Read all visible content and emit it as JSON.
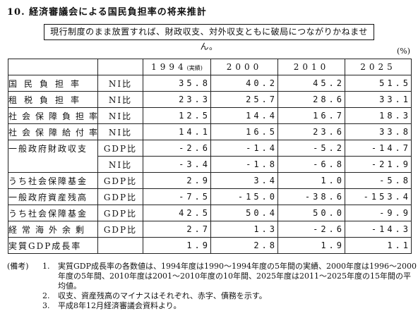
{
  "title": "10. 経済審議会による国民負担率の将来推計",
  "note": "現行制度のまま放置すれば、財政収支、対外収支ともに破局につながりかねません。",
  "unit": "(%)",
  "table": {
    "columns": [
      {
        "year": "1994",
        "suffix": "(実績)"
      },
      {
        "year": "2000",
        "suffix": ""
      },
      {
        "year": "2010",
        "suffix": ""
      },
      {
        "year": "2025",
        "suffix": ""
      }
    ],
    "rows": [
      {
        "label": "国民負担率",
        "unit": "NI比",
        "values": [
          "35.8",
          "40.2",
          "45.2",
          "51.5"
        ]
      },
      {
        "label": "租税負担率",
        "unit": "NI比",
        "values": [
          "23.3",
          "25.7",
          "28.6",
          "33.1"
        ]
      },
      {
        "label": "社会保障負担率",
        "unit": "NI比",
        "values": [
          "12.5",
          "14.4",
          "16.7",
          "18.3"
        ]
      },
      {
        "label": "社会保障給付率",
        "unit": "NI比",
        "values": [
          "14.1",
          "16.5",
          "23.6",
          "33.8"
        ]
      },
      {
        "label": "一般政府財政収支",
        "unit": "GDP比",
        "values": [
          "-2.6",
          "-1.4",
          "-5.2",
          "-14.7"
        ]
      },
      {
        "label": "",
        "unit": "NI比",
        "values": [
          "-3.4",
          "-1.8",
          "-6.8",
          "-21.9"
        ]
      },
      {
        "label": "うち社会保障基金",
        "unit": "GDP比",
        "values": [
          "2.9",
          "3.4",
          "1.0",
          "-5.8"
        ]
      },
      {
        "label": "一般政府資産残高",
        "unit": "GDP比",
        "values": [
          "-7.5",
          "-15.0",
          "-38.6",
          "-153.4"
        ]
      },
      {
        "label": "うち社会保障基金",
        "unit": "GDP比",
        "values": [
          "42.5",
          "50.4",
          "50.0",
          "-9.9"
        ]
      },
      {
        "label": "経常海外余剰",
        "unit": "GDP比",
        "values": [
          "2.7",
          "1.3",
          "-2.6",
          "-14.3"
        ]
      },
      {
        "label": "実質GDP成長率",
        "unit": "",
        "values": [
          "1.9",
          "2.8",
          "1.9",
          "1.1"
        ]
      }
    ]
  },
  "remarks": {
    "head": "(備考)",
    "items": [
      {
        "num": "1.",
        "text": "実質GDP成長率の各数値は、1994年度は1990〜1994年度の5年間の実績、2000年度は1996〜2000年度の5年間、2010年度は2001〜2010年度の10年間、2025年度は2011〜2025年度の15年間の平均値。"
      },
      {
        "num": "2.",
        "text": "収支、資産残高のマイナスはそれぞれ、赤字、債務を示す。"
      },
      {
        "num": "3.",
        "text": "平成8年12月経済審議会資料より。"
      }
    ]
  }
}
